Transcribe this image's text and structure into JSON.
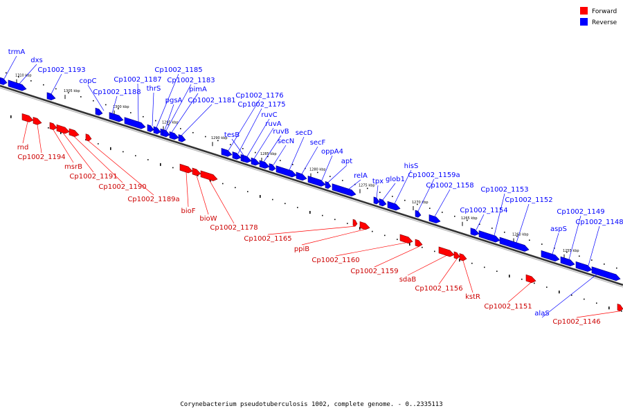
{
  "caption": "Corynebacterium pseudotuberculosis 1002, complete genome. - 0..2335113",
  "legend": [
    {
      "label": "Forward",
      "color": "#ff0000"
    },
    {
      "label": "Reverse",
      "color": "#0000ff"
    }
  ],
  "colors": {
    "forward": "#ff0000",
    "reverse": "#0000ff",
    "backbone": "#333333"
  },
  "ticks": [
    "1310 kbp",
    "1305 kbp",
    "1300 kbp",
    "1295 kbp",
    "1290 kbp",
    "1285 kbp",
    "1280 kbp",
    "1275 kbp",
    "1270 kbp",
    "1265 kbp",
    "1260 kbp",
    "1255 kbp"
  ],
  "reverse_genes": [
    "trmA",
    "dxs",
    "Cp1002_1193",
    "copC",
    "Cp1002_1188",
    "Cp1002_1187",
    "thrS",
    "Cp1002_1185",
    "Cp1002_1183",
    "pgsA",
    "pimA",
    "Cp1002_1181",
    "Cp1002_1176",
    "Cp1002_1175",
    "tesB",
    "ruvC",
    "ruvA",
    "ruvB",
    "secN",
    "secD",
    "secF",
    "oppA4",
    "apt",
    "relA",
    "tpx",
    "glob1",
    "hisS",
    "Cp1002_1159a",
    "Cp1002_1158",
    "Cp1002_1154",
    "Cp1002_1153",
    "Cp1002_1152",
    "aspS",
    "Cp1002_1149",
    "Cp1002_1148",
    "alaS"
  ],
  "forward_genes": [
    "rnd",
    "Cp1002_1194",
    "msrB",
    "Cp1002_1191",
    "Cp1002_1190",
    "Cp1002_1189a",
    "bioF",
    "bioW",
    "Cp1002_1178",
    "Cp1002_1165",
    "ppiB",
    "Cp1002_1160",
    "Cp1002_1159",
    "sdaB",
    "Cp1002_1156",
    "kstR",
    "Cp1002_1151",
    "Cp1002_1146"
  ]
}
